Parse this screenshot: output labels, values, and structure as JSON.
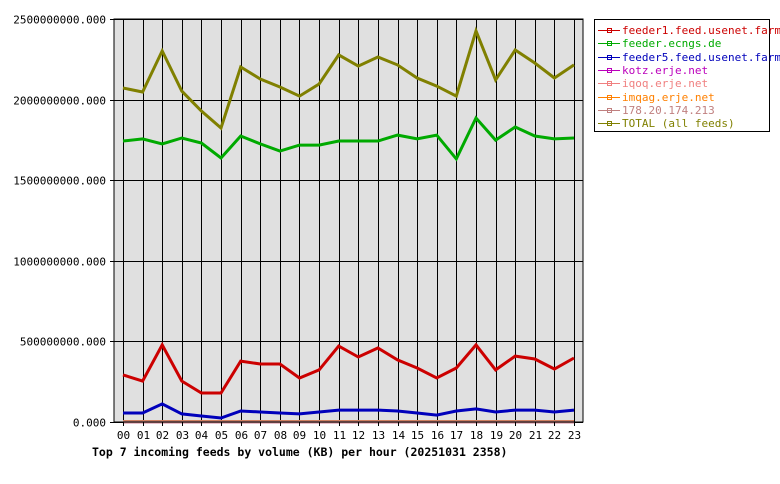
{
  "chart_data": {
    "type": "line",
    "title": "Top 7 incoming feeds by volume (KB) per hour (20251031 2358)",
    "xlabel": "",
    "ylabel": "",
    "ylim": [
      0,
      2500000000
    ],
    "grid": true,
    "legend_position": "right-top",
    "y_ticks": [
      "0.000",
      "500000000.000",
      "1000000000.000",
      "1500000000.000",
      "2000000000.000",
      "2500000000.000"
    ],
    "y_tick_values": [
      0,
      500000000,
      1000000000,
      1500000000,
      2000000000,
      2500000000
    ],
    "categories": [
      "00",
      "01",
      "02",
      "03",
      "04",
      "05",
      "06",
      "07",
      "08",
      "09",
      "10",
      "11",
      "12",
      "13",
      "14",
      "15",
      "16",
      "17",
      "18",
      "19",
      "20",
      "21",
      "22",
      "23"
    ],
    "series": [
      {
        "name": "feeder1.feed.usenet.farm",
        "color": "#cc0000",
        "values": [
          292000000,
          254000000,
          478000000,
          254000000,
          180000000,
          180000000,
          378000000,
          360000000,
          360000000,
          273000000,
          323000000,
          471000000,
          403000000,
          459000000,
          385000000,
          335000000,
          273000000,
          335000000,
          478000000,
          323000000,
          409000000,
          391000000,
          329000000,
          397000000
        ]
      },
      {
        "name": "feeder.ecngs.de",
        "color": "#00aa00",
        "values": [
          1743000000,
          1756000000,
          1725000000,
          1762000000,
          1731000000,
          1638000000,
          1774000000,
          1725000000,
          1681000000,
          1718000000,
          1718000000,
          1743000000,
          1743000000,
          1743000000,
          1780000000,
          1756000000,
          1780000000,
          1632000000,
          1886000000,
          1749000000,
          1830000000,
          1774000000,
          1756000000,
          1762000000
        ]
      },
      {
        "name": "feeder5.feed.usenet.farm",
        "color": "#0000bb",
        "values": [
          56000000,
          56000000,
          112000000,
          50000000,
          37000000,
          25000000,
          68000000,
          62000000,
          56000000,
          50000000,
          62000000,
          74000000,
          74000000,
          74000000,
          68000000,
          56000000,
          43000000,
          68000000,
          81000000,
          62000000,
          74000000,
          74000000,
          62000000,
          74000000
        ]
      },
      {
        "name": "kotz.erje.net",
        "color": "#bb00bb",
        "values": [
          1000000,
          1000000,
          1000000,
          1000000,
          1000000,
          1000000,
          1000000,
          1000000,
          1000000,
          1000000,
          1000000,
          1000000,
          1000000,
          1000000,
          1000000,
          1000000,
          1000000,
          1000000,
          1000000,
          1000000,
          1000000,
          1000000,
          1000000,
          1000000
        ]
      },
      {
        "name": "iqoq.erje.net",
        "color": "#f08080",
        "values": [
          2000000,
          2000000,
          2000000,
          2000000,
          2000000,
          2000000,
          2000000,
          2000000,
          2000000,
          2000000,
          2000000,
          2000000,
          2000000,
          2000000,
          2000000,
          2000000,
          2000000,
          2000000,
          2000000,
          2000000,
          2000000,
          2000000,
          2000000,
          2000000
        ]
      },
      {
        "name": "imqag.erje.net",
        "color": "#ff8000",
        "values": [
          3000000,
          3000000,
          3000000,
          3000000,
          3000000,
          3000000,
          3000000,
          3000000,
          3000000,
          3000000,
          3000000,
          3000000,
          3000000,
          3000000,
          3000000,
          3000000,
          3000000,
          3000000,
          3000000,
          3000000,
          3000000,
          3000000,
          3000000,
          3000000
        ]
      },
      {
        "name": "178.20.174.213",
        "color": "#c08080",
        "values": [
          2000000,
          2000000,
          2000000,
          2000000,
          2000000,
          2000000,
          2000000,
          2000000,
          2000000,
          2000000,
          2000000,
          2000000,
          2000000,
          2000000,
          2000000,
          2000000,
          2000000,
          2000000,
          2000000,
          2000000,
          2000000,
          2000000,
          2000000,
          2000000
        ]
      },
      {
        "name": "TOTAL (all feeds)",
        "color": "#808000",
        "values": [
          2072000000,
          2047000000,
          2302000000,
          2053000000,
          1929000000,
          1824000000,
          2202000000,
          2128000000,
          2078000000,
          2022000000,
          2097000000,
          2277000000,
          2208000000,
          2264000000,
          2215000000,
          2134000000,
          2084000000,
          2022000000,
          2426000000,
          2122000000,
          2308000000,
          2227000000,
          2134000000,
          2215000000
        ]
      }
    ]
  },
  "colors": {
    "plot_background": "#e0e0e0",
    "grid": "#000000",
    "axis": "#000000"
  }
}
